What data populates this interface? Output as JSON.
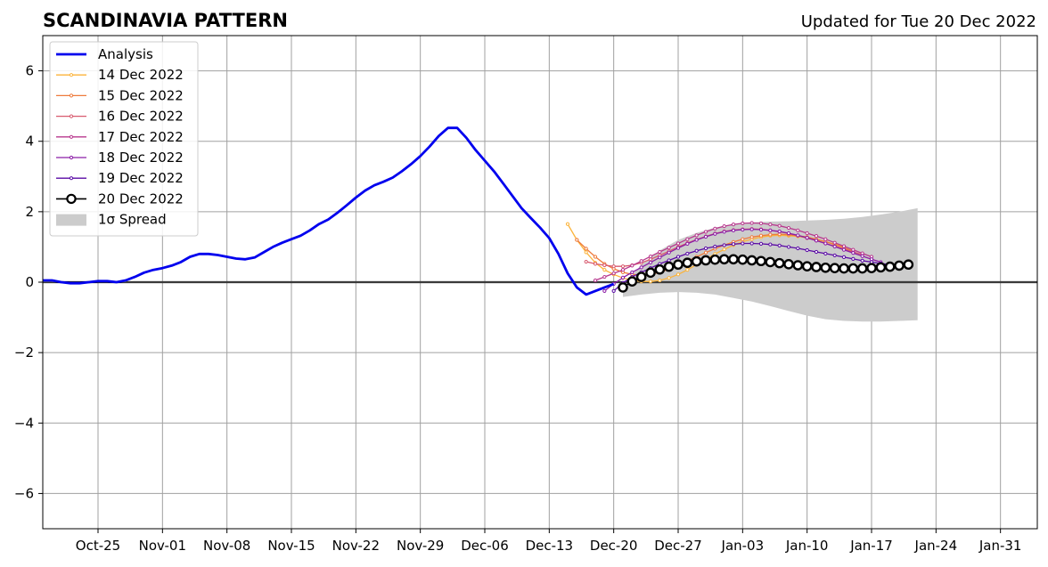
{
  "chart_data": {
    "type": "line",
    "title": "SCANDINAVIA PATTERN",
    "subtitle": "Updated for Tue 20 Dec 2022",
    "xlabel": "",
    "ylabel": "",
    "x_type": "date",
    "xlim": [
      "2022-10-19",
      "2023-02-04"
    ],
    "ylim": [
      -7,
      7
    ],
    "grid": true,
    "legend_position": "top-left",
    "x_ticks": [
      {
        "date": "2022-10-25",
        "label": "Oct-25"
      },
      {
        "date": "2022-11-01",
        "label": "Nov-01"
      },
      {
        "date": "2022-11-08",
        "label": "Nov-08"
      },
      {
        "date": "2022-11-15",
        "label": "Nov-15"
      },
      {
        "date": "2022-11-22",
        "label": "Nov-22"
      },
      {
        "date": "2022-11-29",
        "label": "Nov-29"
      },
      {
        "date": "2022-12-06",
        "label": "Dec-06"
      },
      {
        "date": "2022-12-13",
        "label": "Dec-13"
      },
      {
        "date": "2022-12-20",
        "label": "Dec-20"
      },
      {
        "date": "2022-12-27",
        "label": "Dec-27"
      },
      {
        "date": "2023-01-03",
        "label": "Jan-03"
      },
      {
        "date": "2023-01-10",
        "label": "Jan-10"
      },
      {
        "date": "2023-01-17",
        "label": "Jan-17"
      },
      {
        "date": "2023-01-24",
        "label": "Jan-24"
      },
      {
        "date": "2023-01-31",
        "label": "Jan-31"
      }
    ],
    "y_ticks": [
      {
        "value": -6,
        "label": "−6"
      },
      {
        "value": -4,
        "label": "−4"
      },
      {
        "value": -2,
        "label": "−2"
      },
      {
        "value": 0,
        "label": "0"
      },
      {
        "value": 2,
        "label": "2"
      },
      {
        "value": 4,
        "label": "4"
      },
      {
        "value": 6,
        "label": "6"
      }
    ],
    "analysis": {
      "name": "Analysis",
      "color": "#0000ee",
      "x": [
        "2022-10-19",
        "2022-10-20",
        "2022-10-21",
        "2022-10-22",
        "2022-10-23",
        "2022-10-24",
        "2022-10-25",
        "2022-10-26",
        "2022-10-27",
        "2022-10-28",
        "2022-10-29",
        "2022-10-30",
        "2022-10-31",
        "2022-11-01",
        "2022-11-02",
        "2022-11-03",
        "2022-11-04",
        "2022-11-05",
        "2022-11-06",
        "2022-11-07",
        "2022-11-08",
        "2022-11-09",
        "2022-11-10",
        "2022-11-11",
        "2022-11-12",
        "2022-11-13",
        "2022-11-14",
        "2022-11-15",
        "2022-11-16",
        "2022-11-17",
        "2022-11-18",
        "2022-11-19",
        "2022-11-20",
        "2022-11-21",
        "2022-11-22",
        "2022-11-23",
        "2022-11-24",
        "2022-11-25",
        "2022-11-26",
        "2022-11-27",
        "2022-11-28",
        "2022-11-29",
        "2022-11-30",
        "2022-12-01",
        "2022-12-02",
        "2022-12-03",
        "2022-12-04",
        "2022-12-05",
        "2022-12-06",
        "2022-12-07",
        "2022-12-08",
        "2022-12-09",
        "2022-12-10",
        "2022-12-11",
        "2022-12-12",
        "2022-12-13",
        "2022-12-14",
        "2022-12-15",
        "2022-12-16",
        "2022-12-17",
        "2022-12-18",
        "2022-12-19",
        "2022-12-20"
      ],
      "y": [
        0.05,
        0.05,
        0.0,
        -0.03,
        -0.03,
        0.0,
        0.03,
        0.03,
        0.0,
        0.05,
        0.15,
        0.27,
        0.35,
        0.4,
        0.47,
        0.57,
        0.72,
        0.8,
        0.8,
        0.77,
        0.72,
        0.67,
        0.65,
        0.7,
        0.85,
        1.0,
        1.12,
        1.22,
        1.32,
        1.47,
        1.65,
        1.78,
        1.97,
        2.18,
        2.4,
        2.6,
        2.75,
        2.85,
        2.97,
        3.15,
        3.35,
        3.58,
        3.85,
        4.15,
        4.38,
        4.38,
        4.1,
        3.75,
        3.45,
        3.15,
        2.8,
        2.45,
        2.1,
        1.82,
        1.55,
        1.25,
        0.8,
        0.25,
        -0.15,
        -0.35,
        -0.25,
        -0.15,
        -0.05
      ]
    },
    "spread": {
      "name": "1σ Spread",
      "color": "#cccccc",
      "x": [
        "2022-12-21",
        "2022-12-23",
        "2022-12-25",
        "2022-12-27",
        "2022-12-29",
        "2022-12-31",
        "2023-01-02",
        "2023-01-04",
        "2023-01-06",
        "2023-01-08",
        "2023-01-10",
        "2023-01-12",
        "2023-01-14",
        "2023-01-16",
        "2023-01-18",
        "2023-01-20",
        "2023-01-22"
      ],
      "upper": [
        -0.1,
        0.5,
        0.9,
        1.2,
        1.4,
        1.55,
        1.65,
        1.7,
        1.72,
        1.73,
        1.75,
        1.77,
        1.8,
        1.85,
        1.92,
        2.0,
        2.1
      ],
      "lower": [
        -0.42,
        -0.35,
        -0.3,
        -0.28,
        -0.3,
        -0.35,
        -0.45,
        -0.55,
        -0.68,
        -0.82,
        -0.95,
        -1.05,
        -1.1,
        -1.12,
        -1.12,
        -1.1,
        -1.08
      ]
    },
    "series": [
      {
        "name": "14 Dec 2022",
        "color": "#fbb33a",
        "start": "2022-12-15",
        "end": "2023-01-14",
        "y": [
          1.65,
          1.2,
          0.85,
          0.55,
          0.35,
          0.22,
          0.12,
          0.05,
          0.02,
          0.02,
          0.05,
          0.12,
          0.22,
          0.35,
          0.5,
          0.65,
          0.8,
          0.93,
          1.05,
          1.15,
          1.22,
          1.28,
          1.32,
          1.33,
          1.32,
          1.3,
          1.26,
          1.21,
          1.15,
          1.08,
          1.0
        ]
      },
      {
        "name": "15 Dec 2022",
        "color": "#ee7a3c",
        "start": "2022-12-16",
        "end": "2023-01-15",
        "y": [
          1.2,
          0.95,
          0.72,
          0.52,
          0.38,
          0.28,
          0.22,
          0.2,
          0.22,
          0.28,
          0.37,
          0.48,
          0.6,
          0.72,
          0.84,
          0.95,
          1.05,
          1.14,
          1.22,
          1.28,
          1.32,
          1.35,
          1.36,
          1.35,
          1.32,
          1.28,
          1.22,
          1.15,
          1.07,
          0.98,
          0.88
        ]
      },
      {
        "name": "16 Dec 2022",
        "color": "#d85a6e",
        "start": "2022-12-17",
        "end": "2023-01-16",
        "y": [
          0.58,
          0.52,
          0.48,
          0.45,
          0.45,
          0.48,
          0.55,
          0.65,
          0.76,
          0.88,
          1.0,
          1.11,
          1.21,
          1.3,
          1.38,
          1.44,
          1.48,
          1.5,
          1.51,
          1.5,
          1.47,
          1.43,
          1.38,
          1.32,
          1.25,
          1.18,
          1.1,
          1.02,
          0.94,
          0.86,
          0.78
        ]
      },
      {
        "name": "17 Dec 2022",
        "color": "#b8388e",
        "start": "2022-12-18",
        "end": "2023-01-17",
        "y": [
          0.05,
          0.15,
          0.25,
          0.35,
          0.47,
          0.6,
          0.73,
          0.86,
          0.98,
          1.1,
          1.22,
          1.33,
          1.43,
          1.52,
          1.59,
          1.64,
          1.67,
          1.68,
          1.67,
          1.64,
          1.6,
          1.54,
          1.47,
          1.39,
          1.31,
          1.22,
          1.12,
          1.02,
          0.92,
          0.82,
          0.72
        ]
      },
      {
        "name": "18 Dec 2022",
        "color": "#8b1da6",
        "start": "2022-12-19",
        "end": "2023-01-18",
        "y": [
          -0.25,
          -0.05,
          0.13,
          0.28,
          0.42,
          0.56,
          0.7,
          0.84,
          0.97,
          1.09,
          1.2,
          1.29,
          1.37,
          1.43,
          1.47,
          1.49,
          1.5,
          1.49,
          1.47,
          1.44,
          1.39,
          1.33,
          1.26,
          1.18,
          1.1,
          1.01,
          0.92,
          0.83,
          0.74,
          0.65,
          0.57
        ]
      },
      {
        "name": "19 Dec 2022",
        "color": "#5a0aa5",
        "start": "2022-12-20",
        "end": "2023-01-19",
        "y": [
          -0.25,
          -0.02,
          0.15,
          0.28,
          0.4,
          0.52,
          0.62,
          0.72,
          0.81,
          0.89,
          0.96,
          1.01,
          1.05,
          1.08,
          1.1,
          1.1,
          1.09,
          1.07,
          1.04,
          1.0,
          0.96,
          0.91,
          0.86,
          0.81,
          0.76,
          0.71,
          0.66,
          0.61,
          0.57,
          0.53,
          0.5
        ]
      },
      {
        "name": "20 Dec 2022",
        "color": "#000000",
        "start": "2022-12-21",
        "end": "2023-01-21",
        "y": [
          -0.15,
          0.02,
          0.15,
          0.27,
          0.36,
          0.44,
          0.5,
          0.55,
          0.59,
          0.62,
          0.64,
          0.65,
          0.65,
          0.64,
          0.62,
          0.6,
          0.57,
          0.54,
          0.51,
          0.48,
          0.45,
          0.43,
          0.41,
          0.4,
          0.39,
          0.39,
          0.39,
          0.4,
          0.42,
          0.44,
          0.47,
          0.5
        ]
      }
    ]
  }
}
